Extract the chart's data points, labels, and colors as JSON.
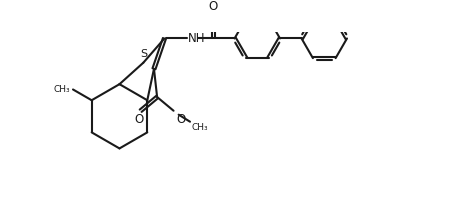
{
  "bg_color": "#ffffff",
  "line_color": "#1a1a1a",
  "line_width": 1.5,
  "fig_width": 4.74,
  "fig_height": 1.98,
  "dpi": 100,
  "xlim": [
    0,
    10
  ],
  "ylim": [
    0,
    4.2
  ]
}
